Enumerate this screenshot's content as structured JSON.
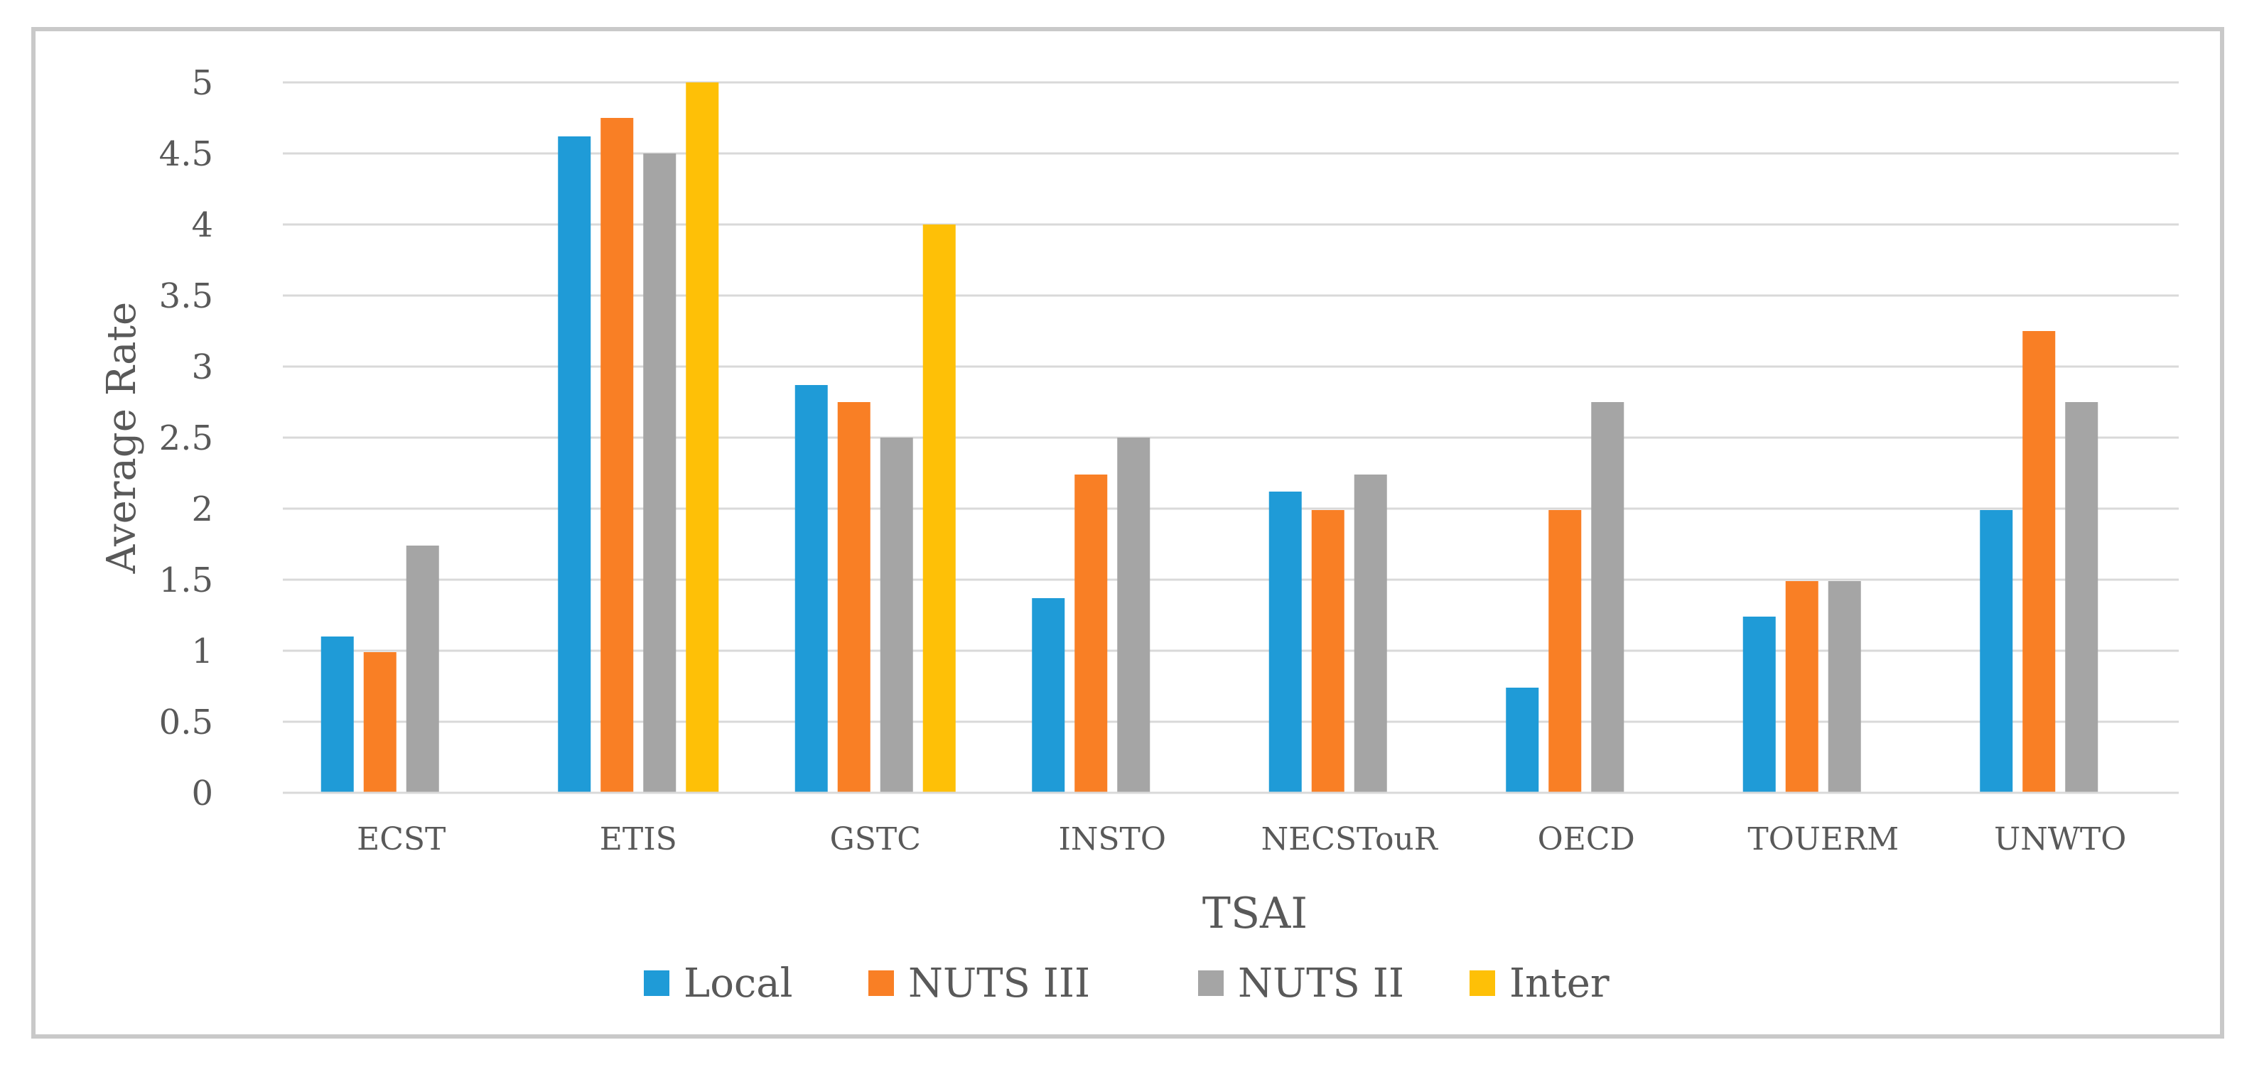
{
  "chart_data": {
    "type": "bar",
    "title": "",
    "xlabel": "TSAI",
    "ylabel": "Average Rate",
    "ylim": [
      0,
      5
    ],
    "yticks": [
      "0",
      "0.5",
      "1",
      "1.5",
      "2",
      "2.5",
      "3",
      "3.5",
      "4",
      "4.5",
      "5"
    ],
    "grid": true,
    "legend_position": "bottom",
    "categories": [
      "ECST",
      "ETIS",
      "GSTC",
      "INSTO",
      "NECSTouR",
      "OECD",
      "TOUERM",
      "UNWTO"
    ],
    "series": [
      {
        "name": "Local",
        "color": "#1f9bd7",
        "values": [
          1.1,
          4.62,
          2.87,
          1.37,
          2.12,
          0.74,
          1.24,
          1.99
        ]
      },
      {
        "name": "NUTS III",
        "color": "#f97f25",
        "values": [
          0.99,
          4.75,
          2.75,
          2.24,
          1.99,
          1.99,
          1.49,
          3.25
        ]
      },
      {
        "name": "NUTS II",
        "color": "#a5a5a5",
        "values": [
          1.74,
          4.5,
          2.5,
          2.5,
          2.24,
          2.75,
          1.49,
          2.75
        ]
      },
      {
        "name": "Inter",
        "color": "#fec007",
        "values": [
          null,
          5.0,
          4.0,
          null,
          null,
          null,
          null,
          null
        ]
      }
    ]
  }
}
